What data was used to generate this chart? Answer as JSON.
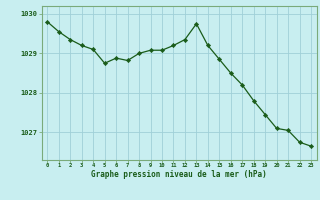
{
  "x": [
    0,
    1,
    2,
    3,
    4,
    5,
    6,
    7,
    8,
    9,
    10,
    11,
    12,
    13,
    14,
    15,
    16,
    17,
    18,
    19,
    20,
    21,
    22,
    23
  ],
  "y": [
    1029.8,
    1029.55,
    1029.35,
    1029.2,
    1029.1,
    1028.75,
    1028.88,
    1028.82,
    1029.0,
    1029.08,
    1029.08,
    1029.2,
    1029.35,
    1029.75,
    1029.2,
    1028.85,
    1028.5,
    1028.2,
    1027.8,
    1027.45,
    1027.1,
    1027.05,
    1026.75,
    1026.65
  ],
  "line_color": "#1a5c1a",
  "marker_color": "#1a5c1a",
  "bg_color": "#c8eef0",
  "grid_color": "#a0d0d8",
  "tick_label_color": "#1a5c1a",
  "xlabel": "Graphe pression niveau de la mer (hPa)",
  "xlabel_color": "#1a5c1a",
  "ytick_labels": [
    1027,
    1028,
    1029,
    1030
  ],
  "xtick_labels": [
    0,
    1,
    2,
    3,
    4,
    5,
    6,
    7,
    8,
    9,
    10,
    11,
    12,
    13,
    14,
    15,
    16,
    17,
    18,
    19,
    20,
    21,
    22,
    23
  ],
  "ylim": [
    1026.3,
    1030.2
  ],
  "xlim": [
    -0.5,
    23.5
  ],
  "border_color": "#7aaa7a"
}
